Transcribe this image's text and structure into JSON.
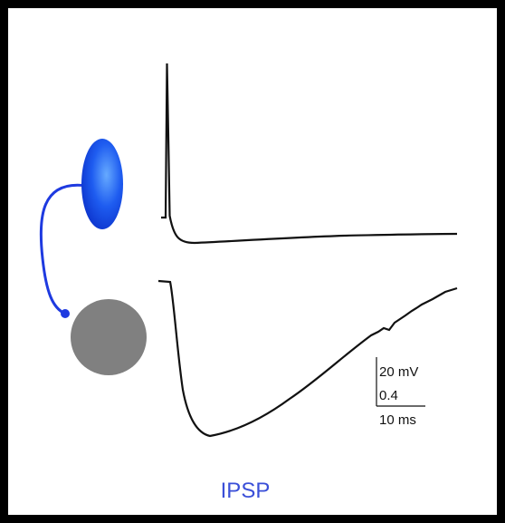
{
  "scale_bar": {
    "voltage": "20 mV",
    "conductance": "0.4",
    "time": "10 ms"
  },
  "label": "IPSP"
}
